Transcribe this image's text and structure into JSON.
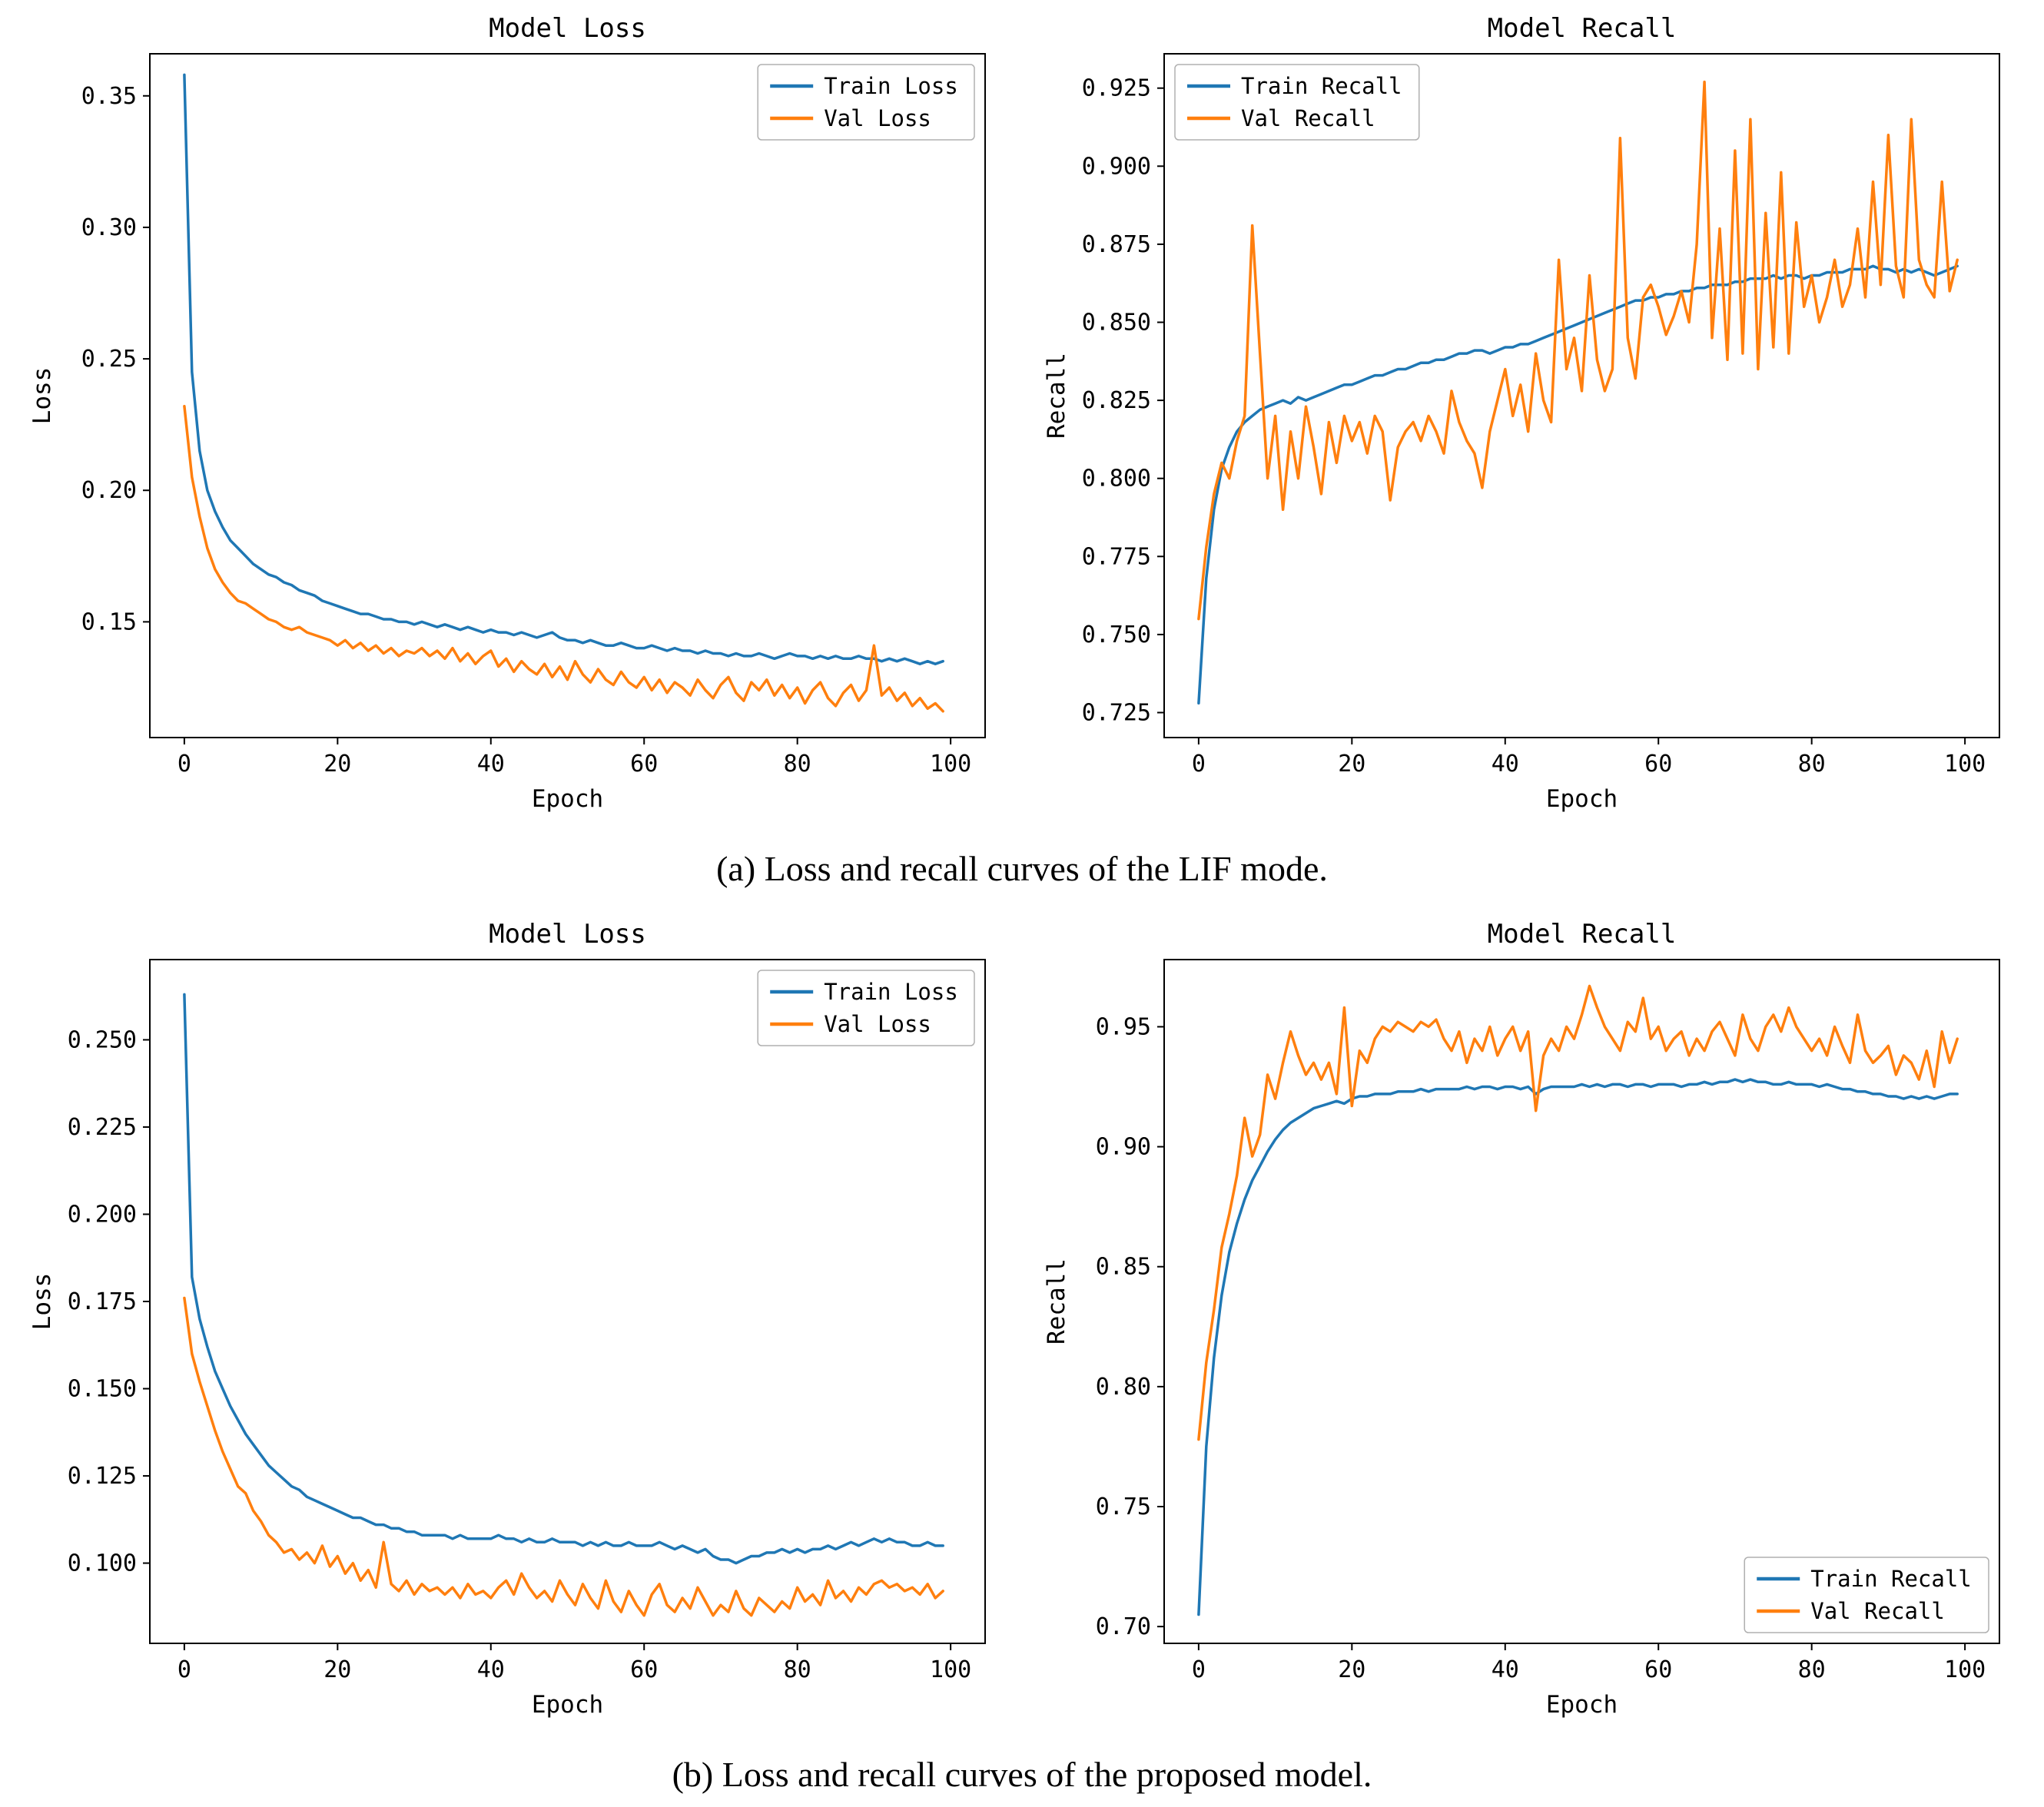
{
  "palette": {
    "train_color": "#1f77b4",
    "val_color": "#ff7f0e",
    "axis_color": "#000000",
    "legend_border": "#b0b0b0",
    "background": "#ffffff"
  },
  "captions": {
    "a": "(a) Loss and recall curves of the LIF mode.",
    "b": "(b)  Loss and recall curves of the proposed model."
  },
  "chart_data": [
    {
      "type": "line",
      "name": "loss-lif",
      "title": "Model Loss",
      "xlabel": "Epoch",
      "ylabel": "Loss",
      "grid": false,
      "xlim": [
        -4.5,
        104.5
      ],
      "ylim": [
        0.106,
        0.366
      ],
      "xticks": [
        0,
        20,
        40,
        60,
        80,
        100
      ],
      "xticklabels": [
        "0",
        "20",
        "40",
        "60",
        "80",
        "100"
      ],
      "yticks": [
        0.15,
        0.2,
        0.25,
        0.3,
        0.35
      ],
      "yticklabels": [
        "0.15",
        "0.20",
        "0.25",
        "0.30",
        "0.35"
      ],
      "legend_position": "upper-right",
      "series": [
        {
          "name": "Train Loss",
          "color": "#1f77b4",
          "values": [
            0.358,
            0.245,
            0.215,
            0.2,
            0.192,
            0.186,
            0.181,
            0.178,
            0.175,
            0.172,
            0.17,
            0.168,
            0.167,
            0.165,
            0.164,
            0.162,
            0.161,
            0.16,
            0.158,
            0.157,
            0.156,
            0.155,
            0.154,
            0.153,
            0.153,
            0.152,
            0.151,
            0.151,
            0.15,
            0.15,
            0.149,
            0.15,
            0.149,
            0.148,
            0.149,
            0.148,
            0.147,
            0.148,
            0.147,
            0.146,
            0.147,
            0.146,
            0.146,
            0.145,
            0.146,
            0.145,
            0.144,
            0.145,
            0.146,
            0.144,
            0.143,
            0.143,
            0.142,
            0.143,
            0.142,
            0.141,
            0.141,
            0.142,
            0.141,
            0.14,
            0.14,
            0.141,
            0.14,
            0.139,
            0.14,
            0.139,
            0.139,
            0.138,
            0.139,
            0.138,
            0.138,
            0.137,
            0.138,
            0.137,
            0.137,
            0.138,
            0.137,
            0.136,
            0.137,
            0.138,
            0.137,
            0.137,
            0.136,
            0.137,
            0.136,
            0.137,
            0.136,
            0.136,
            0.137,
            0.136,
            0.136,
            0.135,
            0.136,
            0.135,
            0.136,
            0.135,
            0.134,
            0.135,
            0.134,
            0.135
          ]
        },
        {
          "name": "Val Loss",
          "color": "#ff7f0e",
          "values": [
            0.232,
            0.205,
            0.19,
            0.178,
            0.17,
            0.165,
            0.161,
            0.158,
            0.157,
            0.155,
            0.153,
            0.151,
            0.15,
            0.148,
            0.147,
            0.148,
            0.146,
            0.145,
            0.144,
            0.143,
            0.141,
            0.143,
            0.14,
            0.142,
            0.139,
            0.141,
            0.138,
            0.14,
            0.137,
            0.139,
            0.138,
            0.14,
            0.137,
            0.139,
            0.136,
            0.14,
            0.135,
            0.138,
            0.134,
            0.137,
            0.139,
            0.133,
            0.136,
            0.131,
            0.135,
            0.132,
            0.13,
            0.134,
            0.129,
            0.133,
            0.128,
            0.135,
            0.13,
            0.127,
            0.132,
            0.128,
            0.126,
            0.131,
            0.127,
            0.125,
            0.129,
            0.124,
            0.128,
            0.123,
            0.127,
            0.125,
            0.122,
            0.128,
            0.124,
            0.121,
            0.126,
            0.129,
            0.123,
            0.12,
            0.127,
            0.124,
            0.128,
            0.122,
            0.126,
            0.121,
            0.125,
            0.119,
            0.124,
            0.127,
            0.121,
            0.118,
            0.123,
            0.126,
            0.12,
            0.124,
            0.141,
            0.122,
            0.125,
            0.12,
            0.123,
            0.118,
            0.121,
            0.117,
            0.119,
            0.116
          ]
        }
      ]
    },
    {
      "type": "line",
      "name": "recall-lif",
      "title": "Model Recall",
      "xlabel": "Epoch",
      "ylabel": "Recall",
      "grid": false,
      "xlim": [
        -4.5,
        104.5
      ],
      "ylim": [
        0.717,
        0.936
      ],
      "xticks": [
        0,
        20,
        40,
        60,
        80,
        100
      ],
      "xticklabels": [
        "0",
        "20",
        "40",
        "60",
        "80",
        "100"
      ],
      "yticks": [
        0.725,
        0.75,
        0.775,
        0.8,
        0.825,
        0.85,
        0.875,
        0.9,
        0.925
      ],
      "yticklabels": [
        "0.725",
        "0.750",
        "0.775",
        "0.800",
        "0.825",
        "0.850",
        "0.875",
        "0.900",
        "0.925"
      ],
      "legend_position": "upper-left",
      "series": [
        {
          "name": "Train Recall",
          "color": "#1f77b4",
          "values": [
            0.728,
            0.768,
            0.79,
            0.803,
            0.81,
            0.815,
            0.818,
            0.82,
            0.822,
            0.823,
            0.824,
            0.825,
            0.824,
            0.826,
            0.825,
            0.826,
            0.827,
            0.828,
            0.829,
            0.83,
            0.83,
            0.831,
            0.832,
            0.833,
            0.833,
            0.834,
            0.835,
            0.835,
            0.836,
            0.837,
            0.837,
            0.838,
            0.838,
            0.839,
            0.84,
            0.84,
            0.841,
            0.841,
            0.84,
            0.841,
            0.842,
            0.842,
            0.843,
            0.843,
            0.844,
            0.845,
            0.846,
            0.847,
            0.848,
            0.849,
            0.85,
            0.851,
            0.852,
            0.853,
            0.854,
            0.855,
            0.856,
            0.857,
            0.857,
            0.858,
            0.858,
            0.859,
            0.859,
            0.86,
            0.86,
            0.861,
            0.861,
            0.862,
            0.862,
            0.862,
            0.863,
            0.863,
            0.864,
            0.864,
            0.864,
            0.865,
            0.864,
            0.865,
            0.865,
            0.864,
            0.865,
            0.865,
            0.866,
            0.866,
            0.866,
            0.867,
            0.867,
            0.867,
            0.868,
            0.867,
            0.867,
            0.866,
            0.867,
            0.866,
            0.867,
            0.866,
            0.865,
            0.866,
            0.867,
            0.868
          ]
        },
        {
          "name": "Val Recall",
          "color": "#ff7f0e",
          "values": [
            0.755,
            0.778,
            0.795,
            0.805,
            0.8,
            0.812,
            0.82,
            0.881,
            0.84,
            0.8,
            0.82,
            0.79,
            0.815,
            0.8,
            0.823,
            0.81,
            0.795,
            0.818,
            0.805,
            0.82,
            0.812,
            0.818,
            0.808,
            0.82,
            0.815,
            0.793,
            0.81,
            0.815,
            0.818,
            0.812,
            0.82,
            0.815,
            0.808,
            0.828,
            0.818,
            0.812,
            0.808,
            0.797,
            0.815,
            0.825,
            0.835,
            0.82,
            0.83,
            0.815,
            0.84,
            0.825,
            0.818,
            0.87,
            0.835,
            0.845,
            0.828,
            0.865,
            0.838,
            0.828,
            0.835,
            0.909,
            0.845,
            0.832,
            0.858,
            0.862,
            0.855,
            0.846,
            0.852,
            0.86,
            0.85,
            0.875,
            0.927,
            0.845,
            0.88,
            0.838,
            0.905,
            0.84,
            0.915,
            0.835,
            0.885,
            0.842,
            0.898,
            0.84,
            0.882,
            0.855,
            0.865,
            0.85,
            0.858,
            0.87,
            0.855,
            0.862,
            0.88,
            0.858,
            0.895,
            0.862,
            0.91,
            0.868,
            0.858,
            0.915,
            0.87,
            0.862,
            0.858,
            0.895,
            0.86,
            0.87
          ]
        }
      ]
    },
    {
      "type": "line",
      "name": "loss-proposed",
      "title": "Model Loss",
      "xlabel": "Epoch",
      "ylabel": "Loss",
      "grid": false,
      "xlim": [
        -4.5,
        104.5
      ],
      "ylim": [
        0.077,
        0.273
      ],
      "xticks": [
        0,
        20,
        40,
        60,
        80,
        100
      ],
      "xticklabels": [
        "0",
        "20",
        "40",
        "60",
        "80",
        "100"
      ],
      "yticks": [
        0.1,
        0.125,
        0.15,
        0.175,
        0.2,
        0.225,
        0.25
      ],
      "yticklabels": [
        "0.100",
        "0.125",
        "0.150",
        "0.175",
        "0.200",
        "0.225",
        "0.250"
      ],
      "legend_position": "upper-right",
      "series": [
        {
          "name": "Train Loss",
          "color": "#1f77b4",
          "values": [
            0.263,
            0.182,
            0.17,
            0.162,
            0.155,
            0.15,
            0.145,
            0.141,
            0.137,
            0.134,
            0.131,
            0.128,
            0.126,
            0.124,
            0.122,
            0.121,
            0.119,
            0.118,
            0.117,
            0.116,
            0.115,
            0.114,
            0.113,
            0.113,
            0.112,
            0.111,
            0.111,
            0.11,
            0.11,
            0.109,
            0.109,
            0.108,
            0.108,
            0.108,
            0.108,
            0.107,
            0.108,
            0.107,
            0.107,
            0.107,
            0.107,
            0.108,
            0.107,
            0.107,
            0.106,
            0.107,
            0.106,
            0.106,
            0.107,
            0.106,
            0.106,
            0.106,
            0.105,
            0.106,
            0.105,
            0.106,
            0.105,
            0.105,
            0.106,
            0.105,
            0.105,
            0.105,
            0.106,
            0.105,
            0.104,
            0.105,
            0.104,
            0.103,
            0.104,
            0.102,
            0.101,
            0.101,
            0.1,
            0.101,
            0.102,
            0.102,
            0.103,
            0.103,
            0.104,
            0.103,
            0.104,
            0.103,
            0.104,
            0.104,
            0.105,
            0.104,
            0.105,
            0.106,
            0.105,
            0.106,
            0.107,
            0.106,
            0.107,
            0.106,
            0.106,
            0.105,
            0.105,
            0.106,
            0.105,
            0.105
          ]
        },
        {
          "name": "Val Loss",
          "color": "#ff7f0e",
          "values": [
            0.176,
            0.16,
            0.152,
            0.145,
            0.138,
            0.132,
            0.127,
            0.122,
            0.12,
            0.115,
            0.112,
            0.108,
            0.106,
            0.103,
            0.104,
            0.101,
            0.103,
            0.1,
            0.105,
            0.099,
            0.102,
            0.097,
            0.1,
            0.095,
            0.098,
            0.093,
            0.106,
            0.094,
            0.092,
            0.095,
            0.091,
            0.094,
            0.092,
            0.093,
            0.091,
            0.093,
            0.09,
            0.094,
            0.091,
            0.092,
            0.09,
            0.093,
            0.095,
            0.091,
            0.097,
            0.093,
            0.09,
            0.092,
            0.089,
            0.095,
            0.091,
            0.088,
            0.094,
            0.09,
            0.087,
            0.095,
            0.089,
            0.086,
            0.092,
            0.088,
            0.085,
            0.091,
            0.094,
            0.088,
            0.086,
            0.09,
            0.087,
            0.093,
            0.089,
            0.085,
            0.088,
            0.086,
            0.092,
            0.087,
            0.085,
            0.09,
            0.088,
            0.086,
            0.089,
            0.087,
            0.093,
            0.089,
            0.091,
            0.088,
            0.095,
            0.09,
            0.092,
            0.089,
            0.093,
            0.091,
            0.094,
            0.095,
            0.093,
            0.094,
            0.092,
            0.093,
            0.091,
            0.094,
            0.09,
            0.092
          ]
        }
      ]
    },
    {
      "type": "line",
      "name": "recall-proposed",
      "title": "Model Recall",
      "xlabel": "Epoch",
      "ylabel": "Recall",
      "grid": false,
      "xlim": [
        -4.5,
        104.5
      ],
      "ylim": [
        0.693,
        0.978
      ],
      "xticks": [
        0,
        20,
        40,
        60,
        80,
        100
      ],
      "xticklabels": [
        "0",
        "20",
        "40",
        "60",
        "80",
        "100"
      ],
      "yticks": [
        0.7,
        0.75,
        0.8,
        0.85,
        0.9,
        0.95
      ],
      "yticklabels": [
        "0.70",
        "0.75",
        "0.80",
        "0.85",
        "0.90",
        "0.95"
      ],
      "legend_position": "lower-right",
      "series": [
        {
          "name": "Train Recall",
          "color": "#1f77b4",
          "values": [
            0.705,
            0.775,
            0.812,
            0.838,
            0.856,
            0.868,
            0.878,
            0.886,
            0.892,
            0.898,
            0.903,
            0.907,
            0.91,
            0.912,
            0.914,
            0.916,
            0.917,
            0.918,
            0.919,
            0.918,
            0.92,
            0.921,
            0.921,
            0.922,
            0.922,
            0.922,
            0.923,
            0.923,
            0.923,
            0.924,
            0.923,
            0.924,
            0.924,
            0.924,
            0.924,
            0.925,
            0.924,
            0.925,
            0.925,
            0.924,
            0.925,
            0.925,
            0.924,
            0.925,
            0.922,
            0.924,
            0.925,
            0.925,
            0.925,
            0.925,
            0.926,
            0.925,
            0.926,
            0.925,
            0.926,
            0.926,
            0.925,
            0.926,
            0.926,
            0.925,
            0.926,
            0.926,
            0.926,
            0.925,
            0.926,
            0.926,
            0.927,
            0.926,
            0.927,
            0.927,
            0.928,
            0.927,
            0.928,
            0.927,
            0.927,
            0.926,
            0.926,
            0.927,
            0.926,
            0.926,
            0.926,
            0.925,
            0.926,
            0.925,
            0.924,
            0.924,
            0.923,
            0.923,
            0.922,
            0.922,
            0.921,
            0.921,
            0.92,
            0.921,
            0.92,
            0.921,
            0.92,
            0.921,
            0.922,
            0.922
          ]
        },
        {
          "name": "Val Recall",
          "color": "#ff7f0e",
          "values": [
            0.778,
            0.81,
            0.832,
            0.858,
            0.872,
            0.888,
            0.912,
            0.896,
            0.905,
            0.93,
            0.92,
            0.935,
            0.948,
            0.938,
            0.93,
            0.935,
            0.928,
            0.935,
            0.922,
            0.958,
            0.917,
            0.94,
            0.935,
            0.945,
            0.95,
            0.948,
            0.952,
            0.95,
            0.948,
            0.952,
            0.95,
            0.953,
            0.945,
            0.94,
            0.948,
            0.935,
            0.945,
            0.94,
            0.95,
            0.938,
            0.945,
            0.95,
            0.94,
            0.948,
            0.915,
            0.938,
            0.945,
            0.94,
            0.95,
            0.945,
            0.955,
            0.967,
            0.958,
            0.95,
            0.945,
            0.94,
            0.952,
            0.948,
            0.962,
            0.945,
            0.95,
            0.94,
            0.945,
            0.948,
            0.938,
            0.945,
            0.94,
            0.948,
            0.952,
            0.945,
            0.938,
            0.955,
            0.945,
            0.94,
            0.95,
            0.955,
            0.948,
            0.958,
            0.95,
            0.945,
            0.94,
            0.945,
            0.938,
            0.95,
            0.942,
            0.935,
            0.955,
            0.94,
            0.935,
            0.938,
            0.942,
            0.93,
            0.938,
            0.935,
            0.928,
            0.94,
            0.925,
            0.948,
            0.935,
            0.945
          ]
        }
      ]
    }
  ]
}
